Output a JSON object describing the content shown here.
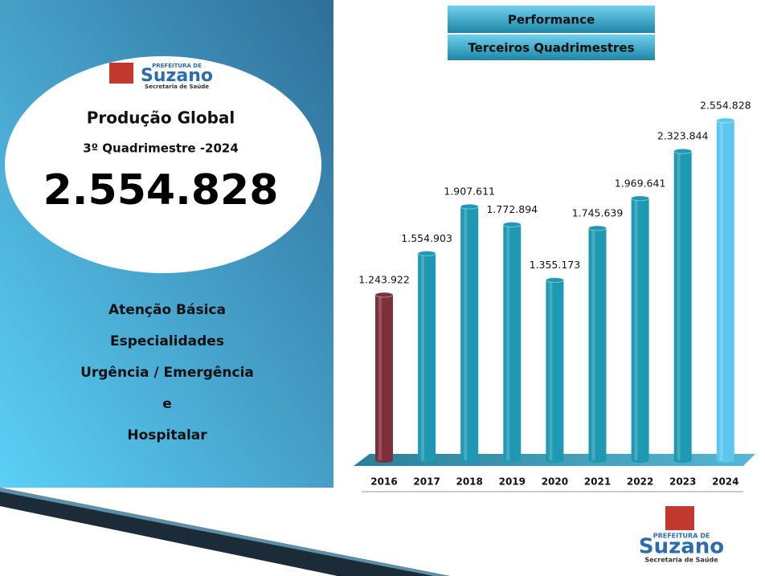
{
  "header": {
    "title": "Performance",
    "subtitle": "Terceiros Quadrimestres"
  },
  "logo": {
    "top": "PREFEITURA DE",
    "name": "Suzano",
    "bottom": "Secretaria de Saúde"
  },
  "panel": {
    "title": "Produção Global",
    "period": "3º Quadrimestre -2024",
    "total": "2.554.828",
    "items": [
      "Atenção Básica",
      "Especialidades",
      "Urgência / Emergência",
      "e",
      "Hospitalar"
    ]
  },
  "chart_data": {
    "type": "bar",
    "categories": [
      "2016",
      "2017",
      "2018",
      "2019",
      "2020",
      "2021",
      "2022",
      "2023",
      "2024"
    ],
    "values": [
      1243922,
      1554903,
      1907611,
      1772894,
      1355173,
      1745639,
      1969641,
      2323844,
      2554828
    ],
    "value_labels": [
      "1.243.922",
      "1.554.903",
      "1.907.611",
      "1.772.894",
      "1.355.173",
      "1.745.639",
      "1.969.641",
      "2.323.844",
      "2.554.828"
    ],
    "colors": [
      "#7d2f3a",
      "#1f98b3",
      "#1f98b3",
      "#1f98b3",
      "#1f98b3",
      "#1f98b3",
      "#1f98b3",
      "#1f98b3",
      "#5cc6ee"
    ]
  }
}
